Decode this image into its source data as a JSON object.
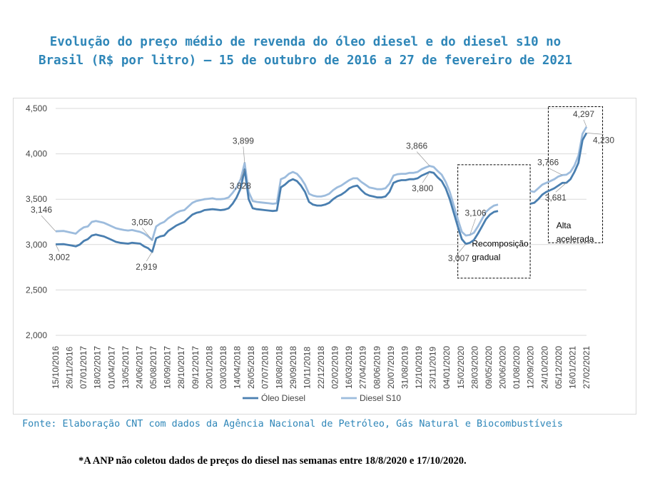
{
  "title": "Evolução do preço médio de revenda do óleo diesel e do diesel s10 no Brasil (R$ por litro) – 15 de outubro de 2016 a 27 de fevereiro de 2021",
  "source": "Fonte: Elaboração CNT com dados da Agência Nacional de Petróleo, Gás Natural e Biocombustíveis",
  "footnote": "*A ANP não coletou dados de preços do diesel nas semanas entre 18/8/2020 e 17/10/2020.",
  "chart_data": {
    "type": "line",
    "ylim": [
      2.0,
      4.5
    ],
    "y_ticks": [
      "2,000",
      "2,500",
      "3,000",
      "3,500",
      "4,000",
      "4,500"
    ],
    "x_tick_labels": [
      "15/10/2016",
      "26/11/2016",
      "07/01/2017",
      "18/02/2017",
      "01/04/2017",
      "13/05/2017",
      "24/06/2017",
      "05/08/2017",
      "16/09/2017",
      "28/10/2017",
      "09/12/2017",
      "20/01/2018",
      "03/03/2018",
      "14/04/2018",
      "26/05/2018",
      "07/07/2018",
      "18/08/2018",
      "29/09/2018",
      "10/11/2018",
      "22/12/2018",
      "02/02/2019",
      "16/03/2019",
      "27/04/2019",
      "08/06/2019",
      "20/07/2019",
      "31/08/2019",
      "12/10/2019",
      "23/11/2019",
      "04/01/2020",
      "15/02/2020",
      "28/03/2020",
      "09/05/2020",
      "20/06/2020",
      "01/08/2020",
      "12/09/2020",
      "24/10/2020",
      "05/12/2020",
      "16/01/2021",
      "27/02/2021"
    ],
    "legend": [
      "Óleo Diesel",
      "Diesel S10"
    ],
    "legend_position": "bottom",
    "series": [
      {
        "name": "Óleo Diesel",
        "color": "#4a7fb0",
        "segments": [
          [
            [
              0,
              3.002
            ],
            [
              2,
              3.005
            ],
            [
              4,
              2.99
            ],
            [
              5,
              2.98
            ],
            [
              6,
              3.0
            ],
            [
              7,
              3.04
            ],
            [
              8,
              3.06
            ],
            [
              9,
              3.1
            ],
            [
              10,
              3.11
            ],
            [
              11,
              3.1
            ],
            [
              12,
              3.09
            ],
            [
              13,
              3.07
            ],
            [
              14,
              3.05
            ],
            [
              15,
              3.03
            ],
            [
              16,
              3.02
            ],
            [
              17,
              3.015
            ],
            [
              18,
              3.01
            ],
            [
              19,
              3.02
            ],
            [
              20,
              3.015
            ],
            [
              21,
              3.01
            ],
            [
              22,
              2.98
            ],
            [
              23,
              2.96
            ],
            [
              24,
              2.919
            ],
            [
              25,
              3.07
            ],
            [
              26,
              3.09
            ],
            [
              27,
              3.1
            ],
            [
              28,
              3.15
            ],
            [
              29,
              3.18
            ],
            [
              30,
              3.21
            ],
            [
              31,
              3.23
            ],
            [
              32,
              3.25
            ],
            [
              33,
              3.29
            ],
            [
              34,
              3.33
            ],
            [
              35,
              3.35
            ],
            [
              36,
              3.36
            ],
            [
              37,
              3.38
            ],
            [
              38,
              3.385
            ],
            [
              39,
              3.39
            ],
            [
              40,
              3.385
            ],
            [
              41,
              3.38
            ],
            [
              42,
              3.385
            ],
            [
              43,
              3.4
            ],
            [
              44,
              3.45
            ],
            [
              45,
              3.52
            ],
            [
              46,
              3.62
            ],
            [
              47,
              3.828
            ],
            [
              48,
              3.5
            ],
            [
              49,
              3.4
            ],
            [
              50,
              3.39
            ],
            [
              51,
              3.385
            ],
            [
              52,
              3.38
            ],
            [
              53,
              3.375
            ],
            [
              54,
              3.37
            ],
            [
              55,
              3.375
            ],
            [
              56,
              3.63
            ],
            [
              57,
              3.66
            ],
            [
              58,
              3.7
            ],
            [
              59,
              3.72
            ],
            [
              60,
              3.7
            ],
            [
              61,
              3.65
            ],
            [
              62,
              3.58
            ],
            [
              63,
              3.47
            ],
            [
              64,
              3.44
            ],
            [
              65,
              3.43
            ],
            [
              66,
              3.43
            ],
            [
              67,
              3.44
            ],
            [
              68,
              3.46
            ],
            [
              69,
              3.5
            ],
            [
              70,
              3.53
            ],
            [
              71,
              3.55
            ],
            [
              72,
              3.58
            ],
            [
              73,
              3.62
            ],
            [
              74,
              3.64
            ],
            [
              75,
              3.65
            ],
            [
              76,
              3.6
            ],
            [
              77,
              3.56
            ],
            [
              78,
              3.54
            ],
            [
              79,
              3.53
            ],
            [
              80,
              3.52
            ],
            [
              81,
              3.52
            ],
            [
              82,
              3.53
            ],
            [
              83,
              3.58
            ],
            [
              84,
              3.68
            ],
            [
              85,
              3.7
            ],
            [
              86,
              3.71
            ],
            [
              87,
              3.71
            ],
            [
              88,
              3.72
            ],
            [
              89,
              3.72
            ],
            [
              90,
              3.73
            ],
            [
              91,
              3.76
            ],
            [
              92,
              3.78
            ],
            [
              93,
              3.8
            ],
            [
              94,
              3.79
            ],
            [
              95,
              3.74
            ],
            [
              96,
              3.7
            ],
            [
              97,
              3.62
            ],
            [
              98,
              3.5
            ],
            [
              99,
              3.35
            ],
            [
              100,
              3.2
            ],
            [
              101,
              3.06
            ],
            [
              102,
              3.007
            ],
            [
              103,
              3.02
            ],
            [
              104,
              3.05
            ],
            [
              105,
              3.12
            ],
            [
              106,
              3.2
            ],
            [
              107,
              3.28
            ],
            [
              108,
              3.33
            ],
            [
              109,
              3.36
            ],
            [
              110,
              3.37
            ]
          ],
          [
            [
              118,
              3.45
            ],
            [
              119,
              3.46
            ],
            [
              120,
              3.5
            ],
            [
              121,
              3.55
            ],
            [
              122,
              3.58
            ],
            [
              123,
              3.6
            ],
            [
              124,
              3.62
            ],
            [
              125,
              3.65
            ],
            [
              126,
              3.68
            ],
            [
              127,
              3.681
            ],
            [
              128,
              3.72
            ],
            [
              129,
              3.8
            ],
            [
              130,
              3.9
            ],
            [
              131,
              4.15
            ],
            [
              132,
              4.23
            ]
          ]
        ]
      },
      {
        "name": "Diesel S10",
        "color": "#9dbcdd",
        "segments": [
          [
            [
              0,
              3.146
            ],
            [
              2,
              3.15
            ],
            [
              4,
              3.13
            ],
            [
              5,
              3.12
            ],
            [
              6,
              3.16
            ],
            [
              7,
              3.19
            ],
            [
              8,
              3.2
            ],
            [
              9,
              3.25
            ],
            [
              10,
              3.26
            ],
            [
              11,
              3.25
            ],
            [
              12,
              3.24
            ],
            [
              13,
              3.22
            ],
            [
              14,
              3.2
            ],
            [
              15,
              3.18
            ],
            [
              16,
              3.17
            ],
            [
              17,
              3.16
            ],
            [
              18,
              3.155
            ],
            [
              19,
              3.16
            ],
            [
              20,
              3.15
            ],
            [
              21,
              3.14
            ],
            [
              22,
              3.12
            ],
            [
              23,
              3.09
            ],
            [
              24,
              3.05
            ],
            [
              25,
              3.2
            ],
            [
              26,
              3.23
            ],
            [
              27,
              3.25
            ],
            [
              28,
              3.29
            ],
            [
              29,
              3.32
            ],
            [
              30,
              3.35
            ],
            [
              31,
              3.37
            ],
            [
              32,
              3.38
            ],
            [
              33,
              3.42
            ],
            [
              34,
              3.46
            ],
            [
              35,
              3.48
            ],
            [
              36,
              3.49
            ],
            [
              37,
              3.5
            ],
            [
              38,
              3.505
            ],
            [
              39,
              3.51
            ],
            [
              40,
              3.5
            ],
            [
              41,
              3.5
            ],
            [
              42,
              3.505
            ],
            [
              43,
              3.52
            ],
            [
              44,
              3.57
            ],
            [
              45,
              3.63
            ],
            [
              46,
              3.72
            ],
            [
              47,
              3.899
            ],
            [
              48,
              3.58
            ],
            [
              49,
              3.48
            ],
            [
              50,
              3.47
            ],
            [
              51,
              3.465
            ],
            [
              52,
              3.46
            ],
            [
              53,
              3.455
            ],
            [
              54,
              3.45
            ],
            [
              55,
              3.455
            ],
            [
              56,
              3.72
            ],
            [
              57,
              3.74
            ],
            [
              58,
              3.78
            ],
            [
              59,
              3.8
            ],
            [
              60,
              3.78
            ],
            [
              61,
              3.73
            ],
            [
              62,
              3.66
            ],
            [
              63,
              3.56
            ],
            [
              64,
              3.54
            ],
            [
              65,
              3.53
            ],
            [
              66,
              3.53
            ],
            [
              67,
              3.54
            ],
            [
              68,
              3.56
            ],
            [
              69,
              3.6
            ],
            [
              70,
              3.63
            ],
            [
              71,
              3.65
            ],
            [
              72,
              3.68
            ],
            [
              73,
              3.71
            ],
            [
              74,
              3.73
            ],
            [
              75,
              3.73
            ],
            [
              76,
              3.69
            ],
            [
              77,
              3.66
            ],
            [
              78,
              3.63
            ],
            [
              79,
              3.62
            ],
            [
              80,
              3.61
            ],
            [
              81,
              3.61
            ],
            [
              82,
              3.62
            ],
            [
              83,
              3.67
            ],
            [
              84,
              3.76
            ],
            [
              85,
              3.775
            ],
            [
              86,
              3.78
            ],
            [
              87,
              3.78
            ],
            [
              88,
              3.79
            ],
            [
              89,
              3.79
            ],
            [
              90,
              3.8
            ],
            [
              91,
              3.83
            ],
            [
              92,
              3.85
            ],
            [
              93,
              3.866
            ],
            [
              94,
              3.855
            ],
            [
              95,
              3.81
            ],
            [
              96,
              3.77
            ],
            [
              97,
              3.69
            ],
            [
              98,
              3.58
            ],
            [
              99,
              3.43
            ],
            [
              100,
              3.28
            ],
            [
              101,
              3.14
            ],
            [
              102,
              3.1
            ],
            [
              103,
              3.106
            ],
            [
              104,
              3.13
            ],
            [
              105,
              3.2
            ],
            [
              106,
              3.28
            ],
            [
              107,
              3.36
            ],
            [
              108,
              3.4
            ],
            [
              109,
              3.43
            ],
            [
              110,
              3.44
            ]
          ],
          [
            [
              118,
              3.59
            ],
            [
              119,
              3.58
            ],
            [
              120,
              3.62
            ],
            [
              121,
              3.66
            ],
            [
              122,
              3.68
            ],
            [
              123,
              3.7
            ],
            [
              124,
              3.72
            ],
            [
              125,
              3.75
            ],
            [
              126,
              3.766
            ],
            [
              127,
              3.77
            ],
            [
              128,
              3.8
            ],
            [
              129,
              3.87
            ],
            [
              130,
              3.98
            ],
            [
              131,
              4.22
            ],
            [
              132,
              4.297
            ]
          ]
        ]
      }
    ],
    "data_labels": [
      {
        "text": "3,146",
        "x": 0,
        "y": 3.146
      },
      {
        "text": "3,002",
        "x": 0,
        "y": 3.002
      },
      {
        "text": "3,050",
        "x": 24,
        "y": 3.05
      },
      {
        "text": "2,919",
        "x": 24,
        "y": 2.919
      },
      {
        "text": "3,899",
        "x": 47,
        "y": 3.899
      },
      {
        "text": "3,828",
        "x": 47,
        "y": 3.828
      },
      {
        "text": "3,866",
        "x": 93,
        "y": 3.866
      },
      {
        "text": "3,800",
        "x": 93,
        "y": 3.8
      },
      {
        "text": "3,106",
        "x": 103,
        "y": 3.106
      },
      {
        "text": "3,007",
        "x": 102,
        "y": 3.007
      },
      {
        "text": "3,766",
        "x": 126,
        "y": 3.766
      },
      {
        "text": "3,681",
        "x": 127,
        "y": 3.681
      },
      {
        "text": "4,297",
        "x": 132,
        "y": 4.297
      },
      {
        "text": "4,230",
        "x": 132,
        "y": 4.23
      }
    ],
    "annotations": [
      {
        "text": "Recomposição gradual",
        "x_range": [
          100,
          118
        ],
        "y_range": [
          2.63,
          3.88
        ]
      },
      {
        "text": "Alta acelerada",
        "x_range": [
          122.5,
          136
        ],
        "y_range": [
          3.02,
          4.52
        ]
      }
    ]
  }
}
